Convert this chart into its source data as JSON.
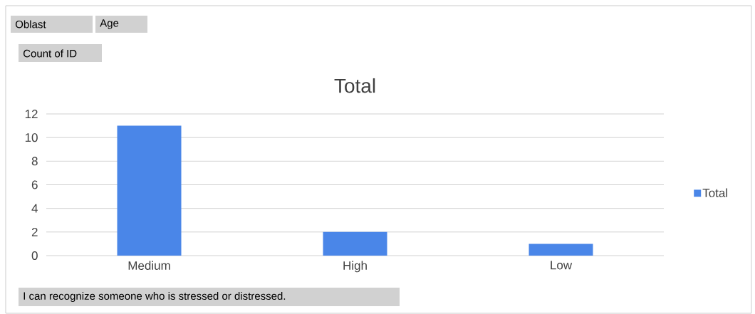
{
  "chart_data": {
    "type": "bar",
    "title": "Total",
    "categories": [
      "Medium",
      "High",
      "Low"
    ],
    "series": [
      {
        "name": "Total",
        "color": "#4a86e8",
        "values": [
          11,
          2,
          1
        ]
      }
    ],
    "ylim": [
      0,
      12
    ],
    "yticks": [
      0,
      2,
      4,
      6,
      8,
      10,
      12
    ],
    "grid": "y",
    "legend": "right",
    "annotations": [
      "Oblast",
      "Age",
      "Count of ID",
      "I can recognize someone who is stressed or distressed."
    ]
  }
}
